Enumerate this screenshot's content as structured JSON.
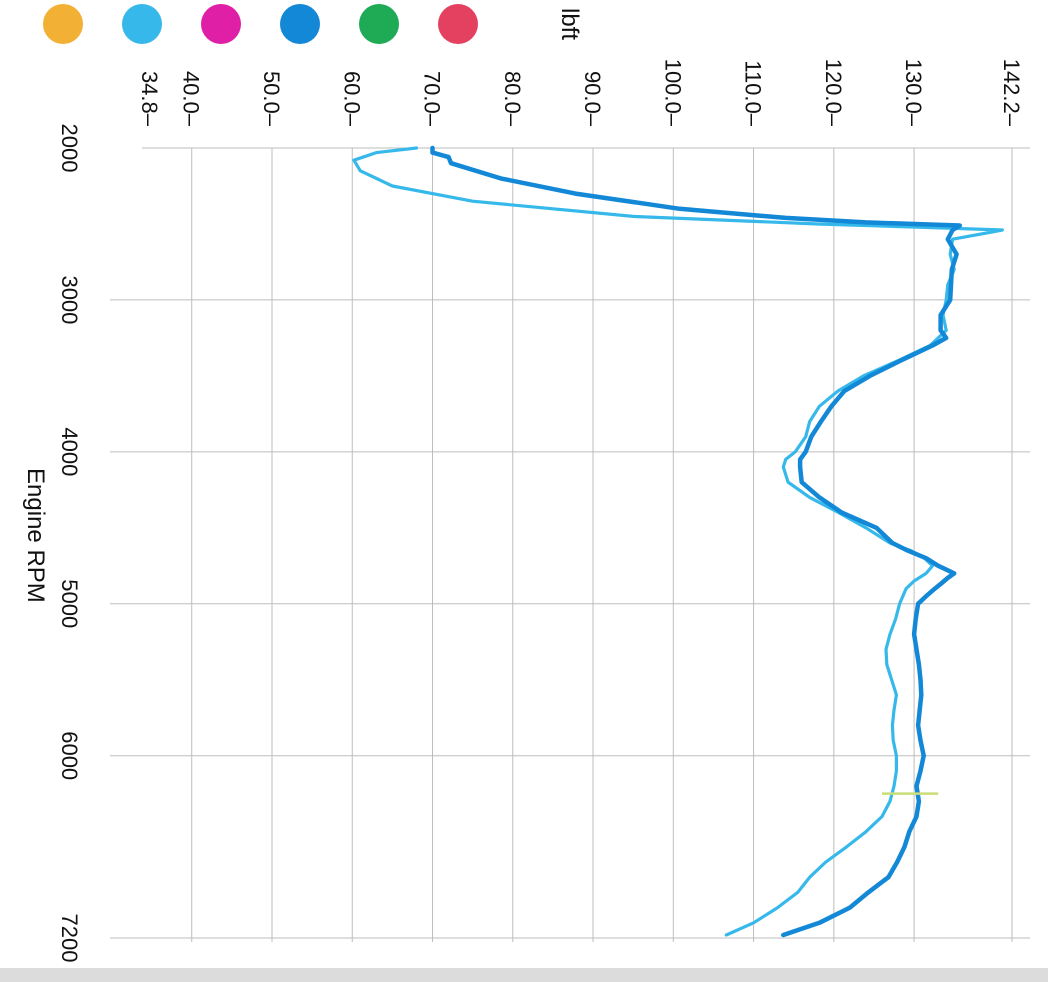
{
  "legend_dots": [
    {
      "name": "orange-dot",
      "color": "#f2b134"
    },
    {
      "name": "light-blue-dot",
      "color": "#36b9ea"
    },
    {
      "name": "magenta-dot",
      "color": "#df1fa5"
    },
    {
      "name": "blue-dot",
      "color": "#1388d6"
    },
    {
      "name": "green-dot",
      "color": "#1faa55"
    },
    {
      "name": "red-dot",
      "color": "#e4405f"
    }
  ],
  "chart_data": {
    "type": "line",
    "orientation": "rotated-90-clockwise",
    "title": "",
    "xlabel": "Engine RPM",
    "ylabel": "lbft",
    "xlim": [
      2000,
      7200
    ],
    "ylim": [
      34.8,
      142.2
    ],
    "x_ticks": [
      "2000",
      "3000",
      "4000",
      "5000",
      "6000",
      "7200"
    ],
    "y_ticks": [
      "34.8",
      "40.0",
      "50.0",
      "60.0",
      "70.0",
      "80.0",
      "90.0",
      "100.0",
      "110.0",
      "120.0",
      "130.0",
      "142.2"
    ],
    "grid": true,
    "series": [
      {
        "color": "#1388d6",
        "width": 4.5,
        "x": [
          2000,
          2030,
          2060,
          2100,
          2200,
          2300,
          2400,
          2460,
          2490,
          2510,
          2540,
          2600,
          2700,
          2800,
          2900,
          3000,
          3100,
          3200,
          3250,
          3300,
          3400,
          3500,
          3600,
          3700,
          3800,
          3900,
          4000,
          4050,
          4100,
          4200,
          4300,
          4400,
          4500,
          4600,
          4650,
          4700,
          4750,
          4780,
          4800,
          4830,
          4870,
          4900,
          4950,
          5000,
          5100,
          5200,
          5300,
          5400,
          5500,
          5600,
          5700,
          5800,
          5900,
          6000,
          6100,
          6200,
          6300,
          6400,
          6500,
          6600,
          6700,
          6800,
          6900,
          7000,
          7100,
          7180
        ],
        "y": [
          70.0,
          70.0,
          72.0,
          72.3,
          78.5,
          87.8,
          100.8,
          114.0,
          124.0,
          135.7,
          134.8,
          134.2,
          135.3,
          134.7,
          134.6,
          134.5,
          133.3,
          133.3,
          134.0,
          132.3,
          128.3,
          124.5,
          121.3,
          119.7,
          118.4,
          117.2,
          116.5,
          115.8,
          115.8,
          116.0,
          118.2,
          121.0,
          125.3,
          127.3,
          129.2,
          131.5,
          133.0,
          134.2,
          135.0,
          134.2,
          133.3,
          132.6,
          131.5,
          130.5,
          130.2,
          130.0,
          130.3,
          130.6,
          130.8,
          130.9,
          130.7,
          130.5,
          130.8,
          131.2,
          130.8,
          130.3,
          130.6,
          130.3,
          129.4,
          128.8,
          127.9,
          126.8,
          124.3,
          122.0,
          118.2,
          113.7
        ]
      },
      {
        "color": "#36b9ea",
        "width": 3.2,
        "x": [
          2000,
          2030,
          2080,
          2150,
          2250,
          2350,
          2450,
          2500,
          2520,
          2540,
          2560,
          2600,
          2700,
          2800,
          2900,
          3000,
          3100,
          3200,
          3300,
          3400,
          3500,
          3600,
          3700,
          3800,
          3900,
          4000,
          4050,
          4100,
          4200,
          4300,
          4400,
          4500,
          4600,
          4650,
          4700,
          4750,
          4800,
          4850,
          4900,
          5000,
          5100,
          5200,
          5300,
          5400,
          5500,
          5600,
          5700,
          5800,
          5900,
          6000,
          6100,
          6200,
          6300,
          6400,
          6500,
          6600,
          6700,
          6800,
          6900,
          7000,
          7100,
          7180
        ],
        "y": [
          68.0,
          63.0,
          60.2,
          61.0,
          65.0,
          75.0,
          95.0,
          118.0,
          130.0,
          141.0,
          139.0,
          134.8,
          134.5,
          135.0,
          134.2,
          134.0,
          133.6,
          134.0,
          132.0,
          128.0,
          123.7,
          120.5,
          118.2,
          117.0,
          116.5,
          115.2,
          114.0,
          113.7,
          114.3,
          117.0,
          120.6,
          124.0,
          127.0,
          129.6,
          131.3,
          132.3,
          131.5,
          130.0,
          129.0,
          128.2,
          127.7,
          127.0,
          126.5,
          126.6,
          127.2,
          127.8,
          127.5,
          127.3,
          127.4,
          127.8,
          127.8,
          127.5,
          127.0,
          126.0,
          124.0,
          121.6,
          119.0,
          117.0,
          115.5,
          113.0,
          110.0,
          106.6
        ]
      }
    ],
    "marker": {
      "color": "#c9de7a",
      "x": 6250,
      "y_from": 126.0,
      "y_to": 133.0
    }
  }
}
